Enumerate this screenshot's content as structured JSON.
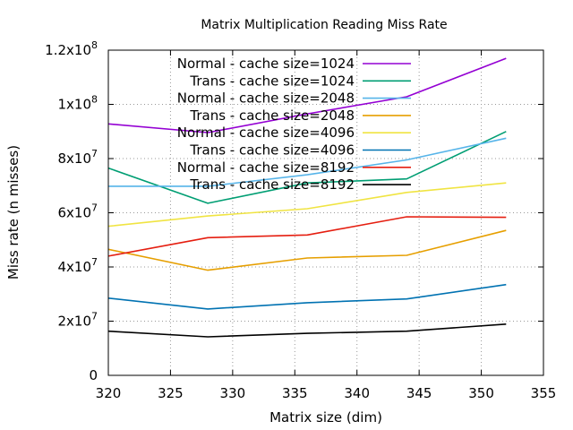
{
  "chart_data": {
    "type": "line",
    "title": "Matrix Multiplication Reading Miss Rate",
    "xlabel": "Matrix size (dim)",
    "ylabel": "Miss rate (n misses)",
    "xlim": [
      320,
      355
    ],
    "ylim": [
      0,
      120000000
    ],
    "x_ticks": [
      320,
      325,
      330,
      335,
      340,
      345,
      350,
      355
    ],
    "y_ticks": [
      {
        "value": 0,
        "mantissa": "0",
        "exp": ""
      },
      {
        "value": 20000000,
        "mantissa": "2x10",
        "exp": "7"
      },
      {
        "value": 40000000,
        "mantissa": "4x10",
        "exp": "7"
      },
      {
        "value": 60000000,
        "mantissa": "6x10",
        "exp": "7"
      },
      {
        "value": 80000000,
        "mantissa": "8x10",
        "exp": "7"
      },
      {
        "value": 100000000,
        "mantissa": "1x10",
        "exp": "8"
      },
      {
        "value": 120000000,
        "mantissa": "1.2x10",
        "exp": "8"
      }
    ],
    "grid": true,
    "legend_position": "top-center",
    "x": [
      320,
      328,
      336,
      344,
      352
    ],
    "series": [
      {
        "name": "Normal - cache size=1024",
        "color": "#9400d3",
        "values": [
          92800000,
          89600000,
          96500000,
          102800000,
          117000000
        ]
      },
      {
        "name": "Trans - cache size=1024",
        "color": "#009e73",
        "values": [
          76500000,
          63500000,
          71000000,
          72500000,
          90000000
        ]
      },
      {
        "name": "Normal - cache size=2048",
        "color": "#56b4e9",
        "values": [
          69800000,
          69800000,
          74000000,
          79500000,
          87500000
        ]
      },
      {
        "name": "Trans - cache size=2048",
        "color": "#e69f00",
        "values": [
          46500000,
          38800000,
          43300000,
          44300000,
          53500000
        ]
      },
      {
        "name": "Normal - cache size=4096",
        "color": "#f0e442",
        "values": [
          55000000,
          58800000,
          61500000,
          67500000,
          71000000
        ]
      },
      {
        "name": "Trans - cache size=4096",
        "color": "#0072b2",
        "values": [
          28500000,
          24500000,
          26800000,
          28200000,
          33500000
        ]
      },
      {
        "name": "Normal - cache size=8192",
        "color": "#e51e10",
        "values": [
          44000000,
          50800000,
          51800000,
          58500000,
          58300000
        ]
      },
      {
        "name": "Trans - cache size=8192",
        "color": "#000000",
        "values": [
          16300000,
          14200000,
          15500000,
          16300000,
          18900000
        ]
      }
    ]
  }
}
